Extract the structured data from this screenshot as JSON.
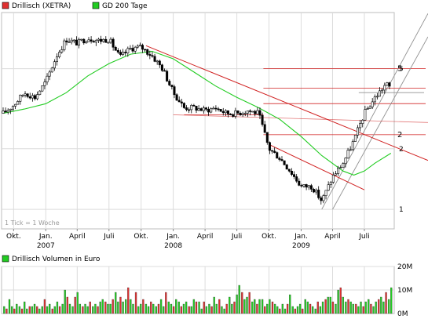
{
  "legend": {
    "price_label": "Drillisch (XETRA)",
    "price_color": "#e03030",
    "ma_label": "GD 200 Tage",
    "ma_color": "#22cc22",
    "volume_label": "Drillisch Volumen in Euro",
    "volume_color": "#22cc22"
  },
  "note": "1 Tick = 1 Woche",
  "colors": {
    "candle_up": "#ffffff",
    "candle_down": "#000000",
    "trendline": "#d02020",
    "channel": "#909090",
    "grid": "#dcdcdc",
    "volume_up": "#22cc22",
    "volume_down": "#e03030"
  },
  "chart_data": [
    {
      "type": "candlestick",
      "title": "Drillisch (XETRA)",
      "scale": "log",
      "x_axis": {
        "tick_labels": [
          "Okt.",
          "Jan.",
          "April",
          "Juli",
          "Okt.",
          "Jan.",
          "April",
          "Juli",
          "Okt.",
          "Jan.",
          "April",
          "Juli"
        ],
        "year_labels": [
          "2007",
          "2008",
          "2009"
        ],
        "start": "2006-09-01",
        "end": "2009-09-20"
      },
      "y_axis": {
        "tick_labels": [
          "1",
          "2",
          "5"
        ],
        "ylim": [
          0.8,
          9.5
        ]
      },
      "series": [
        {
          "name": "Drillisch (XETRA)",
          "points": [
            [
              "2006-09-01",
              3.0
            ],
            [
              "2006-10-01",
              3.3
            ],
            [
              "2006-11-01",
              3.8
            ],
            [
              "2006-12-01",
              3.6
            ],
            [
              "2007-01-01",
              4.3
            ],
            [
              "2007-02-01",
              5.8
            ],
            [
              "2007-03-01",
              7.0
            ],
            [
              "2007-04-01",
              6.7
            ],
            [
              "2007-05-01",
              7.1
            ],
            [
              "2007-06-01",
              6.9
            ],
            [
              "2007-07-01",
              7.0
            ],
            [
              "2007-08-01",
              5.7
            ],
            [
              "2007-09-01",
              6.3
            ],
            [
              "2007-10-01",
              6.4
            ],
            [
              "2007-11-01",
              5.8
            ],
            [
              "2007-12-01",
              5.0
            ],
            [
              "2008-01-01",
              3.8
            ],
            [
              "2008-02-01",
              3.2
            ],
            [
              "2008-03-01",
              3.2
            ],
            [
              "2008-04-01",
              3.1
            ],
            [
              "2008-05-01",
              3.2
            ],
            [
              "2008-06-01",
              3.0
            ],
            [
              "2008-07-01",
              3.0
            ],
            [
              "2008-08-01",
              3.1
            ],
            [
              "2008-09-01",
              3.0
            ],
            [
              "2008-10-01",
              2.0
            ],
            [
              "2008-11-01",
              1.8
            ],
            [
              "2008-12-01",
              1.55
            ],
            [
              "2009-01-01",
              1.3
            ],
            [
              "2009-02-01",
              1.3
            ],
            [
              "2009-03-01",
              1.1
            ],
            [
              "2009-04-01",
              1.45
            ],
            [
              "2009-05-01",
              1.7
            ],
            [
              "2009-06-01",
              2.2
            ],
            [
              "2009-07-01",
              3.0
            ],
            [
              "2009-08-01",
              3.6
            ],
            [
              "2009-09-01",
              4.2
            ],
            [
              "2009-09-15",
              4.0
            ]
          ]
        },
        {
          "name": "GD 200 Tage",
          "points": [
            [
              "2006-09-01",
              3.0
            ],
            [
              "2006-11-01",
              3.15
            ],
            [
              "2007-01-01",
              3.35
            ],
            [
              "2007-03-01",
              3.8
            ],
            [
              "2007-05-01",
              4.6
            ],
            [
              "2007-07-01",
              5.3
            ],
            [
              "2007-09-01",
              5.9
            ],
            [
              "2007-11-01",
              6.1
            ],
            [
              "2008-01-01",
              5.6
            ],
            [
              "2008-03-01",
              4.8
            ],
            [
              "2008-05-01",
              4.1
            ],
            [
              "2008-07-01",
              3.6
            ],
            [
              "2008-09-01",
              3.2
            ],
            [
              "2008-11-01",
              2.8
            ],
            [
              "2009-01-01",
              2.3
            ],
            [
              "2009-03-01",
              1.85
            ],
            [
              "2009-05-01",
              1.55
            ],
            [
              "2009-06-01",
              1.48
            ],
            [
              "2009-07-01",
              1.55
            ],
            [
              "2009-08-01",
              1.7
            ],
            [
              "2009-09-15",
              1.9
            ]
          ]
        }
      ]
    },
    {
      "type": "bar",
      "title": "Drillisch Volumen in Euro",
      "y_axis": {
        "tick_labels": [
          "0M",
          "10M",
          "20M"
        ],
        "ylim": [
          0,
          20
        ]
      },
      "x_range": [
        "2006-09-01",
        "2009-09-20"
      ],
      "values": [
        3,
        2,
        6,
        3,
        2,
        4,
        3,
        2,
        5,
        2,
        3,
        3,
        4,
        3,
        2,
        3,
        6,
        3,
        4,
        2,
        3,
        5,
        3,
        4,
        10,
        7,
        4,
        3,
        7,
        9,
        4,
        3,
        4,
        3,
        5,
        3,
        4,
        3,
        5,
        6,
        5,
        4,
        4,
        6,
        9,
        5,
        7,
        5,
        6,
        11,
        6,
        4,
        9,
        3,
        4,
        6,
        4,
        3,
        5,
        4,
        3,
        4,
        6,
        3,
        9,
        5,
        4,
        3,
        6,
        5,
        3,
        4,
        5,
        3,
        3,
        6,
        5,
        5,
        2,
        5,
        3,
        4,
        3,
        7,
        4,
        6,
        3,
        2,
        4,
        7,
        4,
        5,
        8,
        12,
        9,
        6,
        7,
        9,
        5,
        6,
        4,
        6,
        6,
        3,
        4,
        6,
        5,
        4,
        3,
        2,
        4,
        2,
        4,
        8,
        3,
        2,
        3,
        4,
        2,
        6,
        5,
        4,
        3,
        2,
        5,
        3,
        5,
        6,
        7,
        7,
        5,
        4,
        10,
        11,
        7,
        5,
        6,
        5,
        4,
        4,
        3,
        5,
        3,
        5,
        6,
        4,
        3,
        5,
        6,
        7,
        5,
        9,
        6,
        11
      ]
    }
  ]
}
